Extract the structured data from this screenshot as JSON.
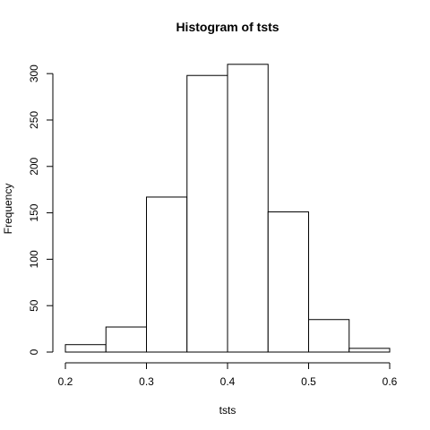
{
  "chart_data": {
    "type": "bar",
    "title": "Histogram of tsts",
    "xlabel": "tsts",
    "ylabel": "Frequency",
    "bins": [
      {
        "x0": 0.2,
        "x1": 0.25,
        "count": 8
      },
      {
        "x0": 0.25,
        "x1": 0.3,
        "count": 27
      },
      {
        "x0": 0.3,
        "x1": 0.35,
        "count": 167
      },
      {
        "x0": 0.35,
        "x1": 0.4,
        "count": 298
      },
      {
        "x0": 0.4,
        "x1": 0.45,
        "count": 310
      },
      {
        "x0": 0.45,
        "x1": 0.5,
        "count": 151
      },
      {
        "x0": 0.5,
        "x1": 0.55,
        "count": 35
      },
      {
        "x0": 0.55,
        "x1": 0.6,
        "count": 4
      }
    ],
    "xlim": [
      0.2,
      0.6
    ],
    "ylim": [
      0,
      310
    ],
    "x_ticks": [
      "0.2",
      "0.3",
      "0.4",
      "0.5",
      "0.6"
    ],
    "y_ticks": [
      "0",
      "50",
      "100",
      "150",
      "200",
      "250",
      "300"
    ],
    "grid": false,
    "bar_fill": "#ffffff",
    "bar_stroke": "#000000"
  }
}
